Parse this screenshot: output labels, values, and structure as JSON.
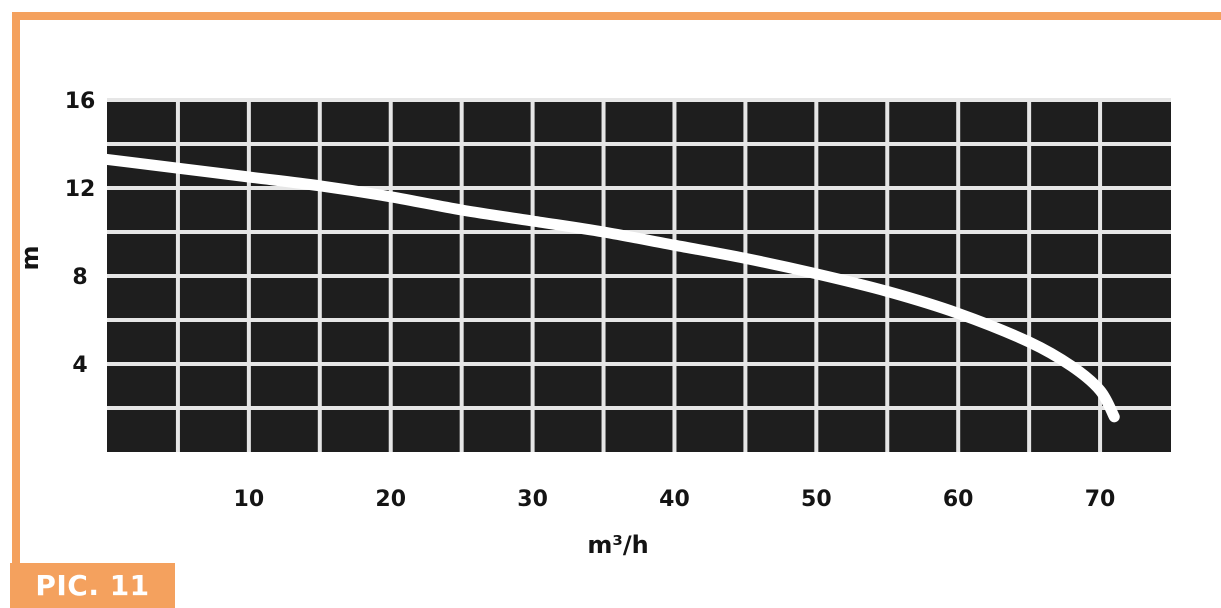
{
  "chart_data": {
    "type": "line",
    "xlabel": "m³/h",
    "ylabel": "m",
    "xlim": [
      0,
      75
    ],
    "ylim": [
      0,
      16
    ],
    "x_ticks": [
      "10",
      "20",
      "30",
      "40",
      "50",
      "60",
      "70"
    ],
    "y_ticks": [
      "4",
      "8",
      "12",
      "16"
    ],
    "grid": true,
    "colors": {
      "plot_background": "#1e1e1e",
      "grid": "#e6e6e6",
      "curve": "#ffffff",
      "frame_accent": "#f4a15e"
    },
    "series": [
      {
        "x": [
          0,
          5,
          10,
          15,
          20,
          25,
          30,
          35,
          40,
          45,
          50,
          55,
          60,
          65,
          68,
          70,
          71
        ],
        "y": [
          13.3,
          12.9,
          12.5,
          12.1,
          11.6,
          11.0,
          10.5,
          10.0,
          9.4,
          8.8,
          8.1,
          7.3,
          6.3,
          5.0,
          3.9,
          2.8,
          1.6
        ]
      }
    ]
  },
  "caption": "PIC. 11"
}
